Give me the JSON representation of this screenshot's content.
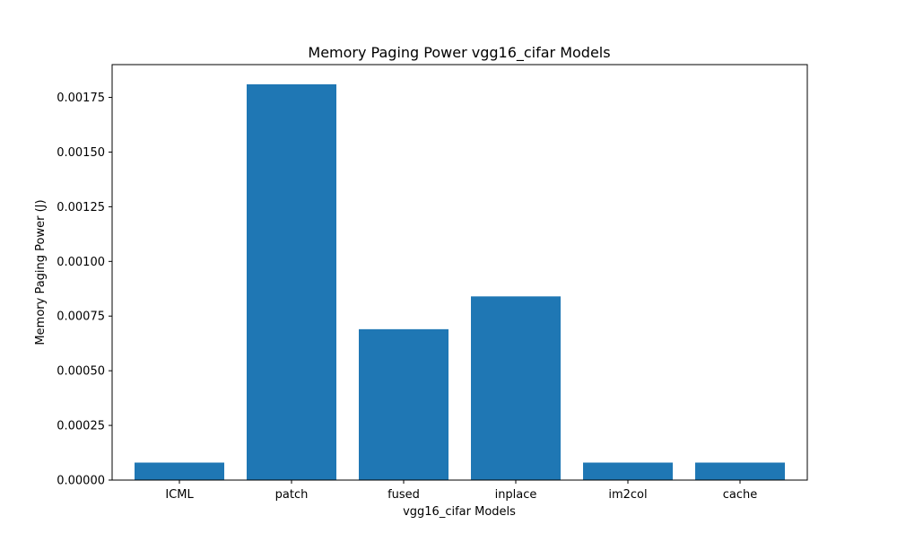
{
  "chart_data": {
    "type": "bar",
    "title": "Memory Paging Power vgg16_cifar Models",
    "xlabel": "vgg16_cifar Models",
    "ylabel": "Memory Paging Power (J)",
    "categories": [
      "ICML",
      "patch",
      "fused",
      "inplace",
      "im2col",
      "cache"
    ],
    "values": [
      8e-05,
      0.00181,
      0.00069,
      0.00084,
      8e-05,
      8e-05
    ],
    "ylim": [
      0,
      0.0019
    ],
    "yticks": [
      0.0,
      0.00025,
      0.0005,
      0.00075,
      0.001,
      0.00125,
      0.0015,
      0.00175
    ],
    "ytick_labels": [
      "0.00000",
      "0.00025",
      "0.00050",
      "0.00075",
      "0.00100",
      "0.00125",
      "0.00150",
      "0.00175"
    ],
    "bar_color": "#1f77b4",
    "grid": false,
    "legend": "none"
  }
}
